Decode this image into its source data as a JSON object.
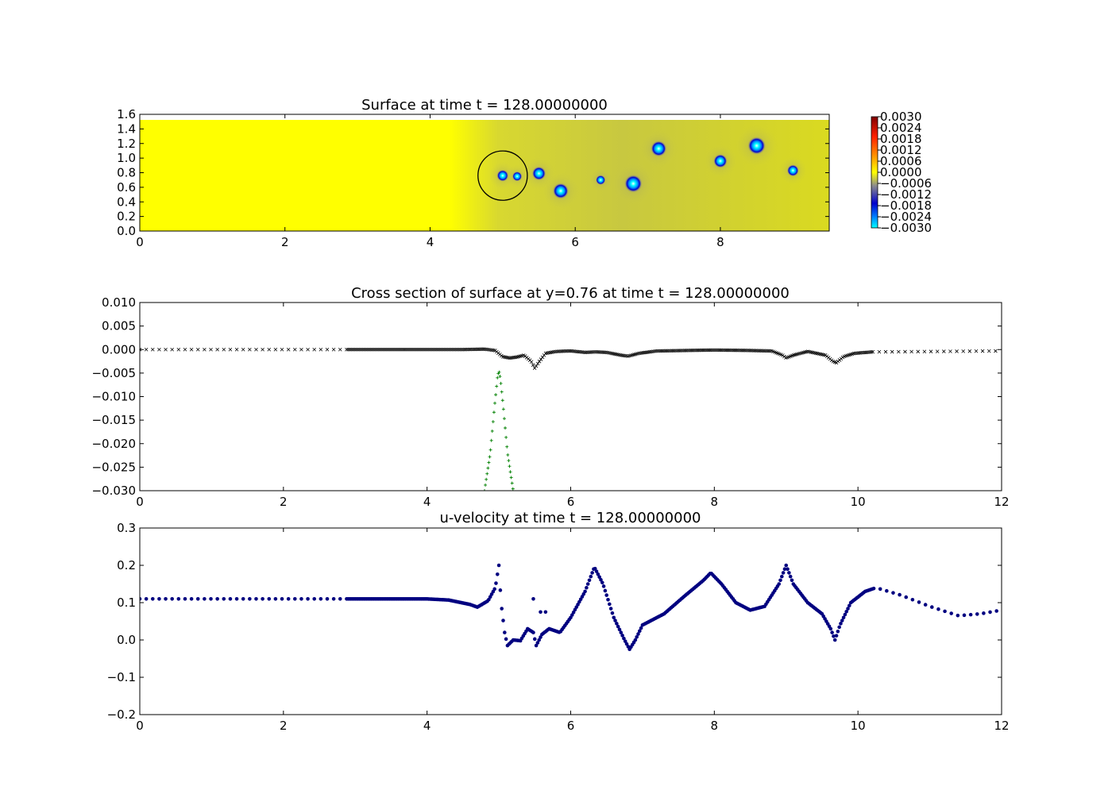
{
  "chart_data": [
    {
      "type": "heatmap",
      "title": "Surface at time t =   128.00000000",
      "xlim": [
        0,
        9.5
      ],
      "ylim": [
        0,
        1.6
      ],
      "x_ticks": [
        "0",
        "2",
        "4",
        "6",
        "8"
      ],
      "y_ticks": [
        "0.0",
        "0.2",
        "0.4",
        "0.6",
        "0.8",
        "1.0",
        "1.2",
        "1.4",
        "1.6"
      ],
      "colorbar": {
        "range": [
          -0.003,
          0.003
        ],
        "labels": [
          "0.0030",
          "0.0024",
          "0.0018",
          "0.0012",
          "0.0006",
          "0.0000",
          "−0.0006",
          "−0.0012",
          "−0.0018",
          "−0.0024",
          "−0.0030"
        ]
      },
      "background_level": 0.0,
      "blobs": [
        {
          "x": 5.0,
          "y": 0.76,
          "r": 0.06
        },
        {
          "x": 5.2,
          "y": 0.75,
          "r": 0.05
        },
        {
          "x": 5.5,
          "y": 0.79,
          "r": 0.07
        },
        {
          "x": 5.8,
          "y": 0.55,
          "r": 0.08
        },
        {
          "x": 6.35,
          "y": 0.7,
          "r": 0.05
        },
        {
          "x": 6.8,
          "y": 0.65,
          "r": 0.09
        },
        {
          "x": 7.15,
          "y": 1.13,
          "r": 0.08
        },
        {
          "x": 8.0,
          "y": 0.96,
          "r": 0.07
        },
        {
          "x": 8.5,
          "y": 1.17,
          "r": 0.09
        },
        {
          "x": 9.0,
          "y": 0.83,
          "r": 0.06
        }
      ],
      "circle": {
        "x": 5.0,
        "y": 0.76,
        "r": 0.34
      }
    },
    {
      "type": "scatter",
      "title": "Cross section of surface at y=0.76 at time t =   128.00000000",
      "xlim": [
        0,
        12
      ],
      "ylim": [
        -0.03,
        0.01
      ],
      "x_ticks": [
        "0",
        "2",
        "4",
        "6",
        "8",
        "10",
        "12"
      ],
      "y_ticks": [
        "0.010",
        "0.005",
        "0.000",
        "−0.005",
        "−0.010",
        "−0.015",
        "−0.020",
        "−0.025",
        "−0.030"
      ],
      "series": [
        {
          "marker": "x",
          "color": "#000000",
          "keypoints": [
            [
              0,
              0.0
            ],
            [
              2.8,
              0.0
            ],
            [
              4.5,
              0.0
            ],
            [
              4.8,
              0.0001
            ],
            [
              4.95,
              -0.0002
            ],
            [
              5.05,
              -0.0015
            ],
            [
              5.15,
              -0.0018
            ],
            [
              5.25,
              -0.0016
            ],
            [
              5.35,
              -0.0012
            ],
            [
              5.45,
              -0.0025
            ],
            [
              5.5,
              -0.004
            ],
            [
              5.55,
              -0.0028
            ],
            [
              5.65,
              -0.0008
            ],
            [
              5.8,
              -0.0004
            ],
            [
              6.0,
              -0.0003
            ],
            [
              6.2,
              -0.0006
            ],
            [
              6.35,
              -0.0005
            ],
            [
              6.5,
              -0.0006
            ],
            [
              6.7,
              -0.0012
            ],
            [
              6.8,
              -0.0014
            ],
            [
              6.95,
              -0.0008
            ],
            [
              7.2,
              -0.0003
            ],
            [
              7.6,
              -0.0002
            ],
            [
              8.0,
              -0.0001
            ],
            [
              8.5,
              -0.0002
            ],
            [
              8.8,
              -0.0003
            ],
            [
              8.95,
              -0.0012
            ],
            [
              9.0,
              -0.0018
            ],
            [
              9.1,
              -0.0012
            ],
            [
              9.3,
              -0.0004
            ],
            [
              9.55,
              -0.0012
            ],
            [
              9.65,
              -0.0025
            ],
            [
              9.7,
              -0.0028
            ],
            [
              9.8,
              -0.0015
            ],
            [
              9.95,
              -0.0008
            ],
            [
              10.2,
              -0.0005
            ],
            [
              12,
              -0.0003
            ]
          ]
        },
        {
          "marker": "+",
          "color": "#008000",
          "keypoints": [
            [
              4.8,
              -0.03
            ],
            [
              4.88,
              -0.022
            ],
            [
              4.94,
              -0.012
            ],
            [
              4.98,
              -0.006
            ],
            [
              5.0,
              -0.0045
            ],
            [
              5.02,
              -0.006
            ],
            [
              5.06,
              -0.012
            ],
            [
              5.12,
              -0.022
            ],
            [
              5.2,
              -0.03
            ]
          ]
        }
      ]
    },
    {
      "type": "scatter",
      "title": "u-velocity at time t =   128.00000000",
      "xlim": [
        0,
        12
      ],
      "ylim": [
        -0.2,
        0.3
      ],
      "x_ticks": [
        "0",
        "2",
        "4",
        "6",
        "8",
        "10",
        "12"
      ],
      "y_ticks": [
        "0.3",
        "0.2",
        "0.1",
        "0.0",
        "−0.1",
        "−0.2"
      ],
      "series": [
        {
          "marker": "o",
          "color": "#000080",
          "keypoints": [
            [
              0,
              0.11
            ],
            [
              2.8,
              0.11
            ],
            [
              4.0,
              0.11
            ],
            [
              4.3,
              0.107
            ],
            [
              4.6,
              0.095
            ],
            [
              4.7,
              0.088
            ],
            [
              4.85,
              0.105
            ],
            [
              4.95,
              0.14
            ],
            [
              5.0,
              0.2
            ],
            [
              5.03,
              0.1
            ],
            [
              5.08,
              0.02
            ],
            [
              5.12,
              -0.015
            ],
            [
              5.2,
              0.0
            ],
            [
              5.3,
              -0.002
            ],
            [
              5.4,
              0.03
            ],
            [
              5.48,
              0.02
            ],
            [
              5.52,
              -0.015
            ],
            [
              5.6,
              0.015
            ],
            [
              5.7,
              0.03
            ],
            [
              5.85,
              0.02
            ],
            [
              6.0,
              0.06
            ],
            [
              6.2,
              0.13
            ],
            [
              6.33,
              0.195
            ],
            [
              6.45,
              0.15
            ],
            [
              6.6,
              0.06
            ],
            [
              6.75,
              0.0
            ],
            [
              6.82,
              -0.025
            ],
            [
              6.9,
              0.0
            ],
            [
              7.0,
              0.04
            ],
            [
              7.3,
              0.07
            ],
            [
              7.6,
              0.12
            ],
            [
              7.85,
              0.16
            ],
            [
              7.95,
              0.18
            ],
            [
              8.1,
              0.15
            ],
            [
              8.3,
              0.1
            ],
            [
              8.5,
              0.08
            ],
            [
              8.7,
              0.09
            ],
            [
              8.9,
              0.15
            ],
            [
              9.0,
              0.2
            ],
            [
              9.1,
              0.15
            ],
            [
              9.3,
              0.1
            ],
            [
              9.5,
              0.07
            ],
            [
              9.62,
              0.03
            ],
            [
              9.68,
              0.0
            ],
            [
              9.75,
              0.04
            ],
            [
              9.9,
              0.1
            ],
            [
              10.1,
              0.13
            ],
            [
              10.25,
              0.14
            ],
            [
              10.6,
              0.12
            ],
            [
              11.0,
              0.09
            ],
            [
              11.4,
              0.065
            ],
            [
              11.7,
              0.07
            ],
            [
              12.0,
              0.08
            ]
          ]
        }
      ],
      "outliers": [
        [
          5.48,
          0.11
        ],
        [
          5.58,
          0.075
        ],
        [
          5.65,
          0.075
        ]
      ]
    }
  ]
}
